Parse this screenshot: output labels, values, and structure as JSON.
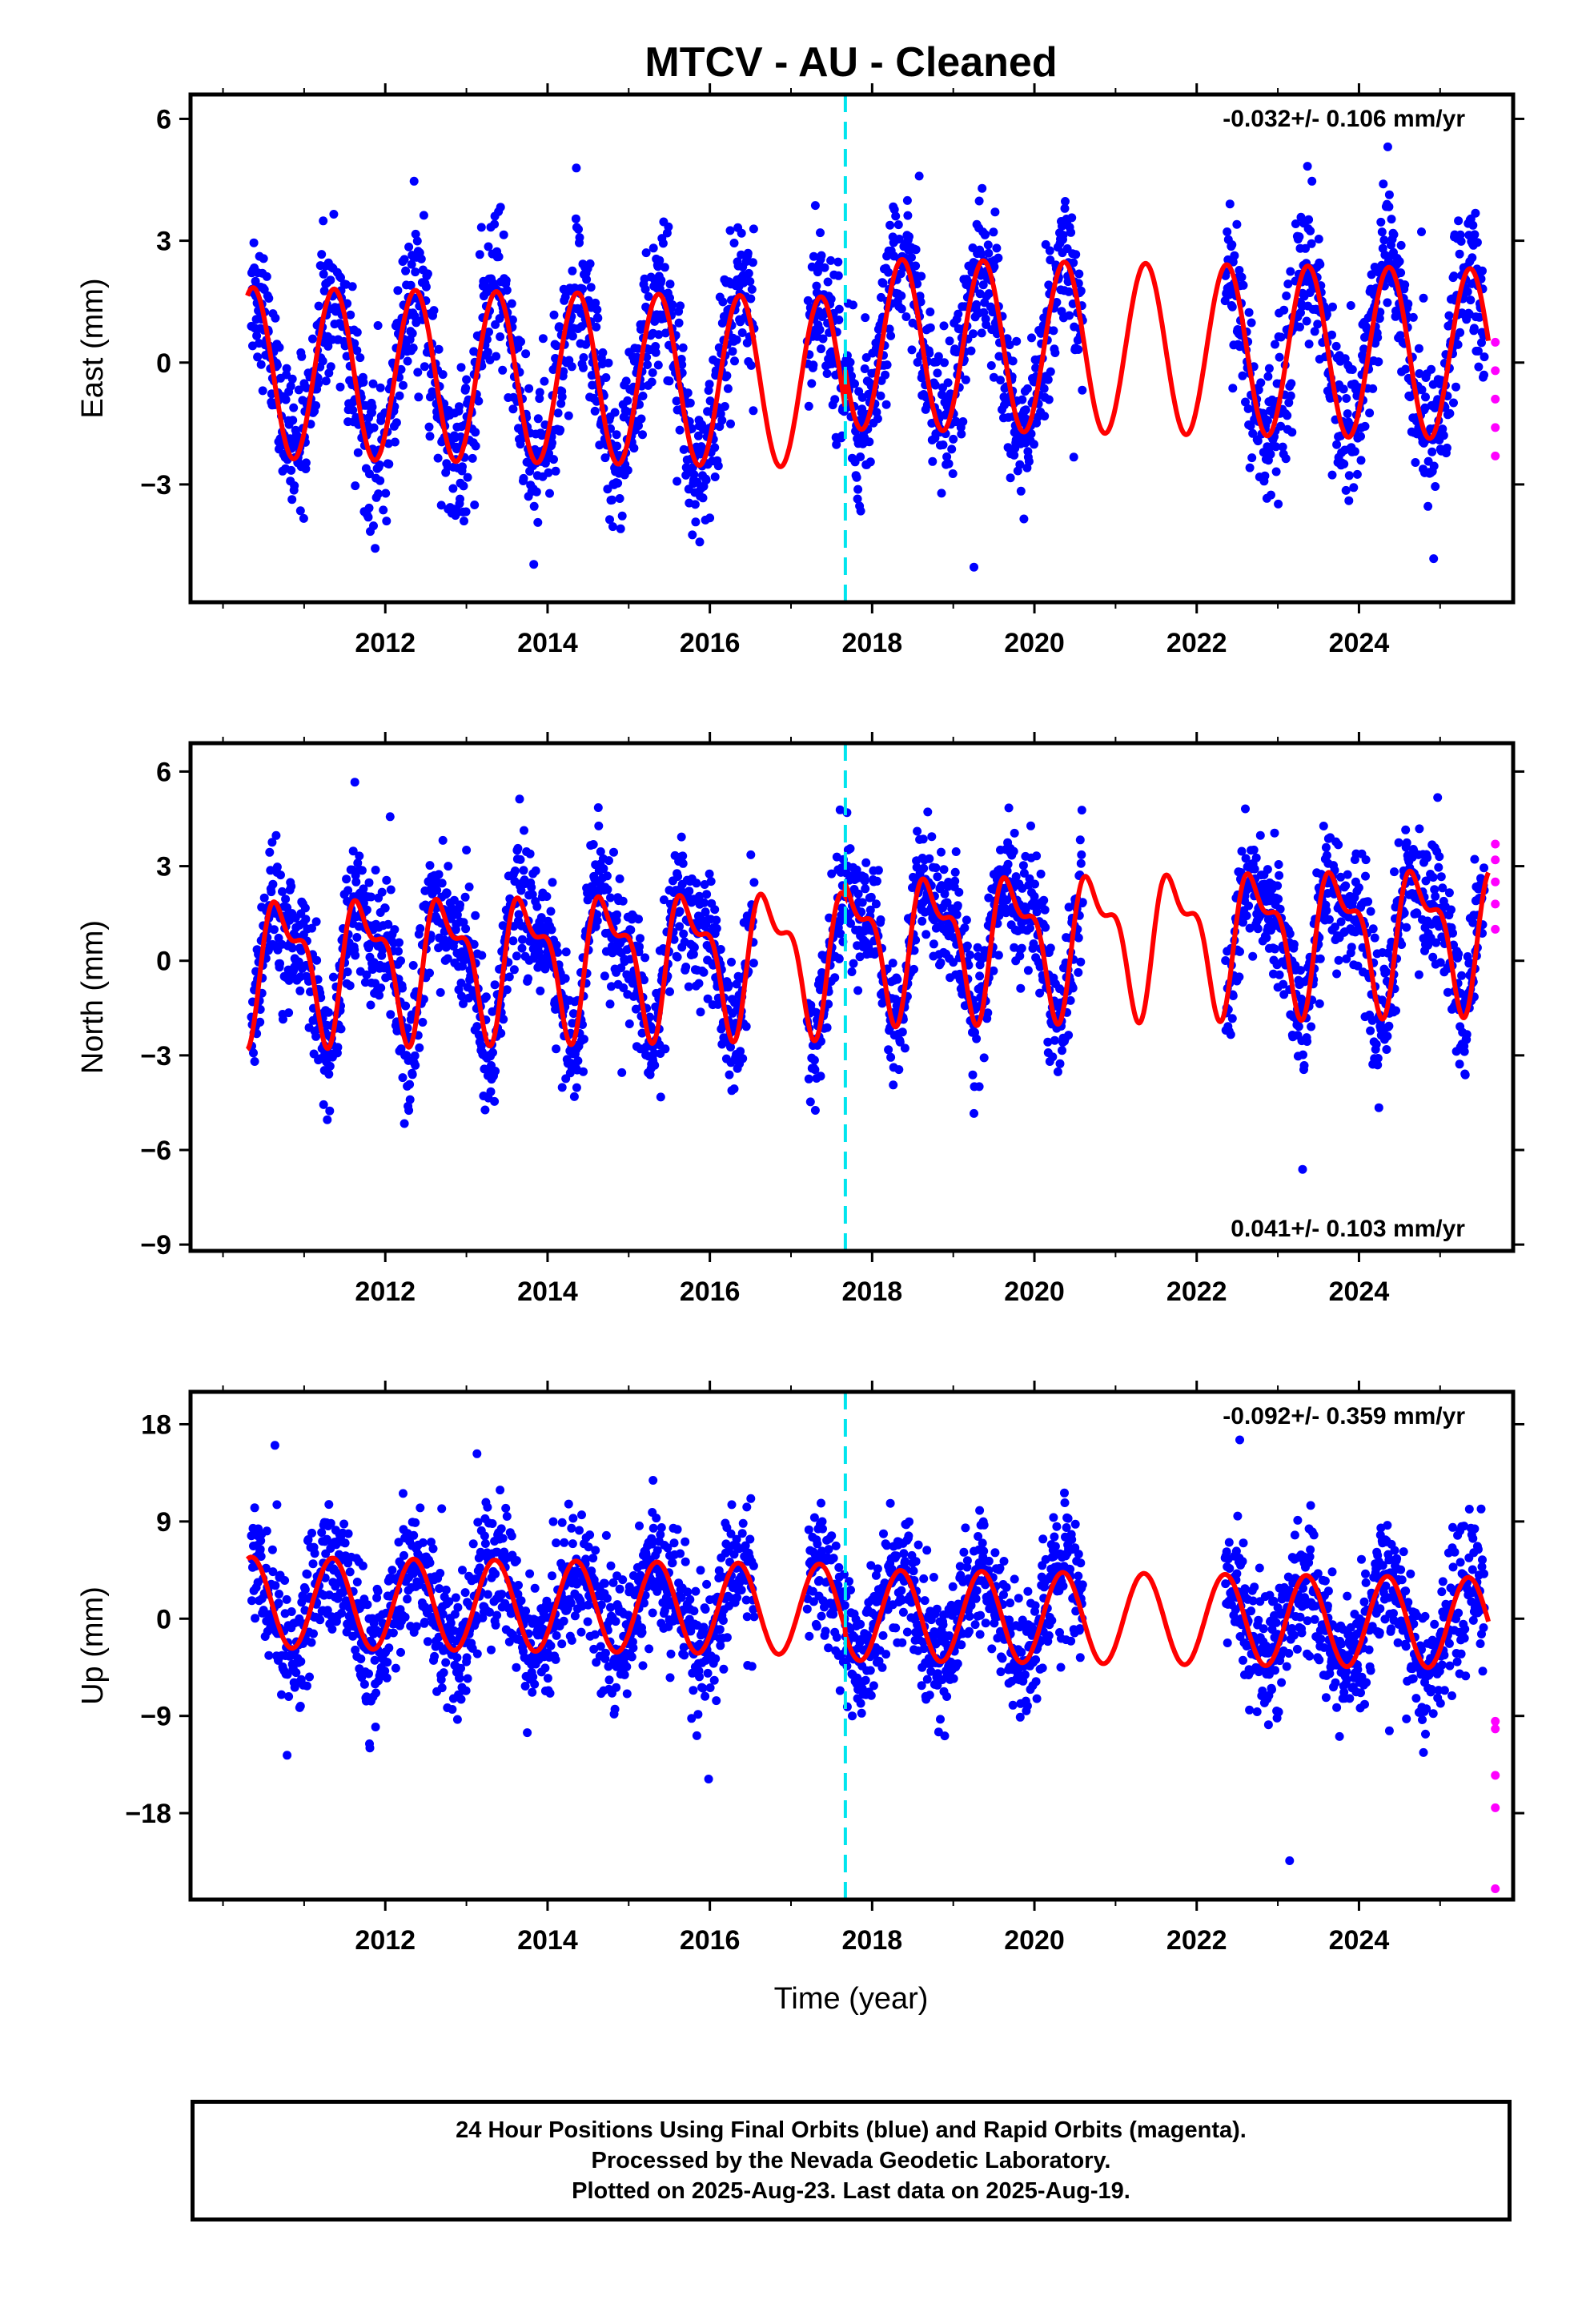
{
  "title": "MTCV  - AU - Cleaned",
  "xlabel": "Time (year)",
  "footer": {
    "line1": "24 Hour Positions Using Final Orbits (blue) and Rapid Orbits (magenta).",
    "line2": "Processed by the Nevada Geodetic Laboratory.",
    "line3": "Plotted on 2025-Aug-23. Last data on 2025-Aug-19."
  },
  "colors": {
    "final": "#0000ff",
    "rapid": "#ff00ff",
    "model": "#ff0000",
    "event": "#00e5ee"
  },
  "chart_data": [
    {
      "type": "scatter",
      "component": "east",
      "ylabel": "East (mm)",
      "rate_label": "-0.032+/- 0.106 mm/yr",
      "rate_position": "top-right",
      "xlim": [
        2009.6,
        2025.9
      ],
      "ylim": [
        -5.9,
        6.6
      ],
      "xticks": [
        "2012",
        "2014",
        "2016",
        "2018",
        "2020",
        "2022",
        "2024"
      ],
      "yticks": [
        "6",
        "3",
        "0",
        "−3"
      ],
      "ytick_values": [
        6,
        3,
        0,
        -3
      ],
      "event_line_x": 2017.67,
      "data_start": 2010.35,
      "data_end": 2025.55,
      "gaps": [
        [
          2016.55,
          2017.2
        ],
        [
          2020.6,
          2022.35
        ]
      ],
      "model": {
        "amplitude": 2.1,
        "offset_before": -0.5,
        "offset_after": 0.45,
        "phase_year": 0.12,
        "semiannual": 0.0,
        "trend": -0.032
      },
      "scatter_sd": 0.9,
      "rapid_points": [
        0.5,
        -0.2,
        -0.9,
        -1.6,
        -2.3
      ]
    },
    {
      "type": "scatter",
      "component": "north",
      "ylabel": "North (mm)",
      "rate_label": "0.041+/- 0.103 mm/yr",
      "rate_position": "bottom-right",
      "xlim": [
        2009.6,
        2025.9
      ],
      "ylim": [
        -9.2,
        6.9
      ],
      "xticks": [
        "2012",
        "2014",
        "2016",
        "2018",
        "2020",
        "2022",
        "2024"
      ],
      "yticks": [
        "6",
        "3",
        "0",
        "−3",
        "−6",
        "−9"
      ],
      "ytick_values": [
        6,
        3,
        0,
        -3,
        -6,
        -9
      ],
      "event_line_x": 2017.67,
      "data_start": 2010.35,
      "data_end": 2025.55,
      "gaps": [
        [
          2016.55,
          2017.2
        ],
        [
          2020.6,
          2022.35
        ]
      ],
      "model": {
        "amplitude": 1.9,
        "offset_before": 0.2,
        "offset_after": 0.6,
        "phase_year": 0.5,
        "semiannual": 0.9,
        "trend": 0.041
      },
      "scatter_sd": 1.0,
      "rapid_points": [
        3.7,
        3.2,
        2.5,
        1.8,
        1.0
      ]
    },
    {
      "type": "scatter",
      "component": "up",
      "ylabel": "Up (mm)",
      "rate_label": "-0.092+/- 0.359 mm/yr",
      "rate_position": "top-right",
      "xlim": [
        2009.6,
        2025.9
      ],
      "ylim": [
        -26,
        21
      ],
      "xticks": [
        "2012",
        "2014",
        "2016",
        "2018",
        "2020",
        "2022",
        "2024"
      ],
      "yticks": [
        "18",
        "9",
        "0",
        "−9",
        "−18"
      ],
      "ytick_values": [
        18,
        9,
        0,
        -9,
        -18
      ],
      "event_line_x": 2017.67,
      "data_start": 2010.35,
      "data_end": 2025.55,
      "gaps": [
        [
          2016.55,
          2017.2
        ],
        [
          2020.6,
          2022.35
        ]
      ],
      "model": {
        "amplitude": 4.2,
        "offset_before": 0.8,
        "offset_after": 0.3,
        "phase_year": 0.1,
        "semiannual": 0.0,
        "trend": -0.092
      },
      "scatter_sd": 3.0,
      "rapid_points": [
        -9.5,
        -10.2,
        -14.5,
        -17.5,
        -25.0
      ]
    }
  ]
}
